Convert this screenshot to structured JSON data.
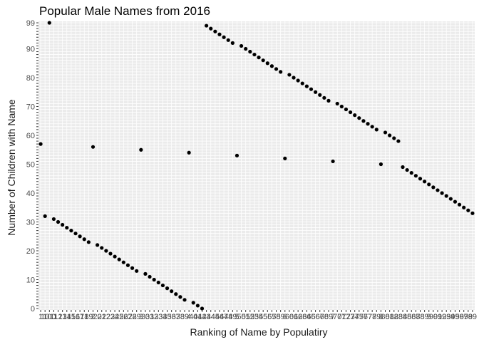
{
  "chart_data": {
    "type": "scatter",
    "title": "Popular Male Names from 2016",
    "xlabel": "Ranking of Name by Populatiry",
    "ylabel": "Number of Children with Name",
    "x_categories": [
      "1",
      "10",
      "100",
      "11",
      "12",
      "13",
      "14",
      "15",
      "16",
      "17",
      "18",
      "19",
      "2",
      "20",
      "21",
      "22",
      "23",
      "24",
      "25",
      "26",
      "27",
      "28",
      "29",
      "3",
      "30",
      "31",
      "32",
      "33",
      "34",
      "35",
      "36",
      "37",
      "38",
      "39",
      "4",
      "40",
      "41",
      "42",
      "43",
      "44",
      "45",
      "46",
      "47",
      "48",
      "49",
      "5",
      "50",
      "51",
      "52",
      "53",
      "54",
      "55",
      "56",
      "57",
      "58",
      "59",
      "6",
      "60",
      "61",
      "62",
      "63",
      "64",
      "65",
      "66",
      "67",
      "68",
      "69",
      "7",
      "70",
      "71",
      "72",
      "73",
      "74",
      "75",
      "76",
      "77",
      "78",
      "79",
      "8",
      "80",
      "81",
      "82",
      "83",
      "84",
      "85",
      "86",
      "87",
      "88",
      "89",
      "9",
      "90",
      "91",
      "92",
      "93",
      "94",
      "95",
      "96",
      "97",
      "98",
      "99"
    ],
    "y_levels": 100,
    "y_tick_labels_legible": [
      "0",
      "10",
      "20",
      "30",
      "40",
      "50",
      "60",
      "70",
      "80",
      "90",
      "99"
    ],
    "y_level_of_each_x": [
      57,
      32,
      99,
      31,
      30,
      29,
      28,
      27,
      26,
      25,
      24,
      23,
      56,
      22,
      21,
      20,
      19,
      18,
      17,
      16,
      15,
      14,
      13,
      55,
      12,
      11,
      10,
      9,
      8,
      7,
      6,
      5,
      4,
      3,
      54,
      2,
      1,
      0,
      98,
      97,
      96,
      95,
      94,
      93,
      92,
      53,
      91,
      90,
      89,
      88,
      87,
      86,
      85,
      84,
      83,
      82,
      52,
      81,
      80,
      79,
      78,
      77,
      76,
      75,
      74,
      73,
      72,
      51,
      71,
      70,
      69,
      68,
      67,
      66,
      65,
      64,
      63,
      62,
      50,
      61,
      60,
      59,
      58,
      49,
      48,
      47,
      46,
      45,
      44,
      43,
      42,
      41,
      40,
      39,
      38,
      37,
      36,
      35,
      34,
      33
    ],
    "point_color": "#000000",
    "panel_color": "#ebebeb",
    "grid": true,
    "legend": "none"
  }
}
